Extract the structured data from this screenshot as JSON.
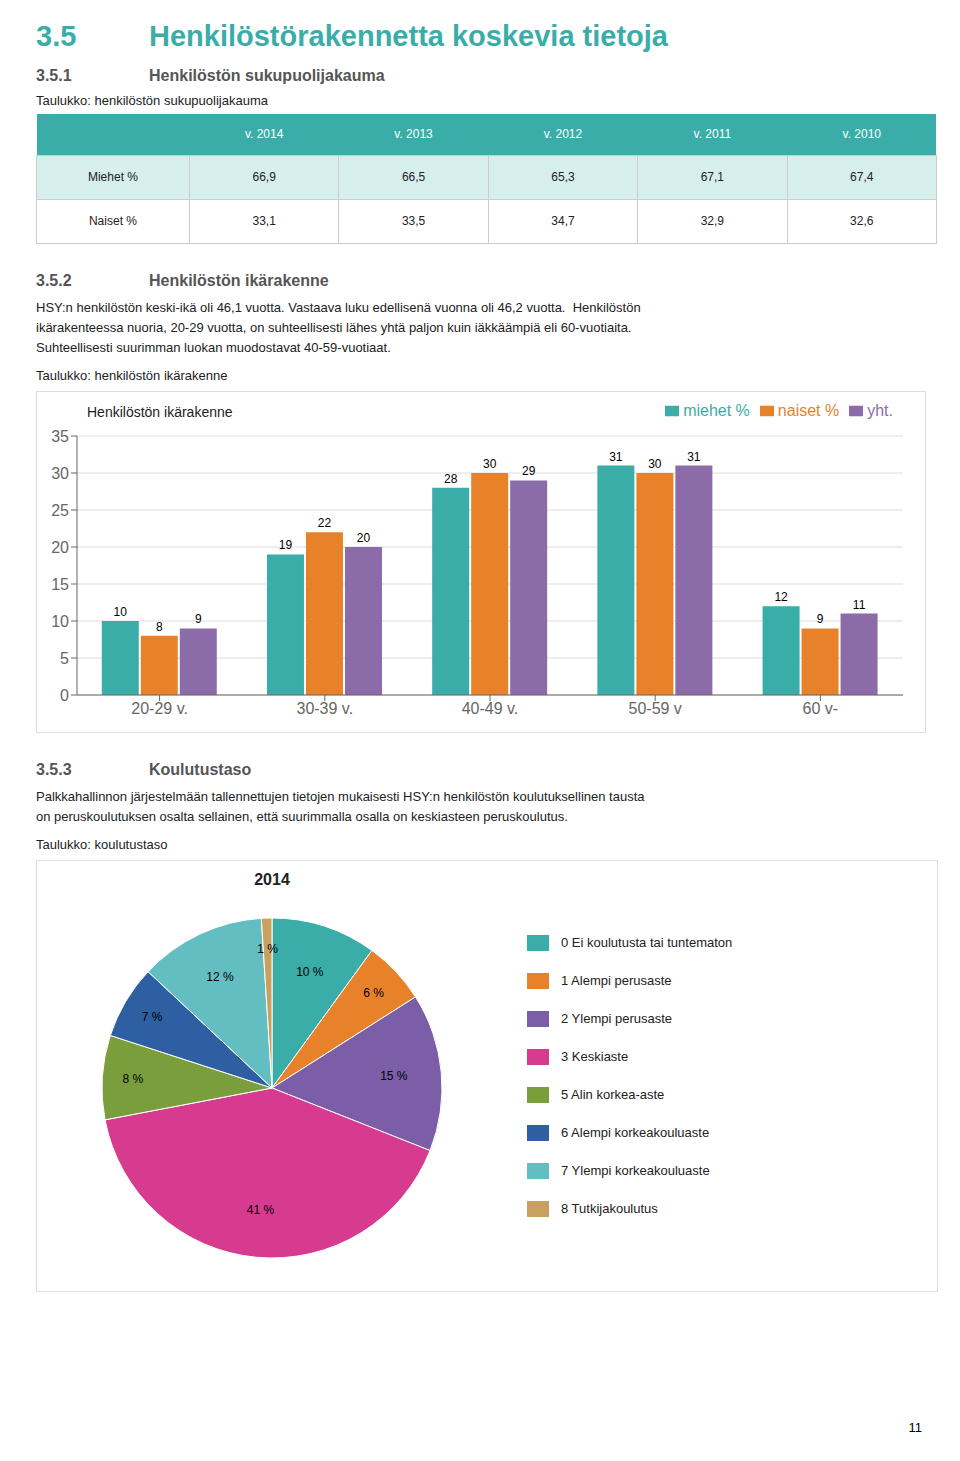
{
  "title_num": "3.5",
  "title_text": "Henkilöstörakennetta koskevia tietoja",
  "title_color": "#3AADA8",
  "sections": [
    {
      "num": "3.5.1",
      "text": "Henkilöstön sukupuolijakauma",
      "label": "Taulukko: henkilöstön sukupuolijakauma"
    },
    {
      "num": "3.5.2",
      "text": "Henkilöstön ikärakenne",
      "body": [
        "HSY:n henkilöstön keski-ikä oli 46,1 vuotta. Vastaava luku edellisenä vuonna oli 46,2 vuotta.  Henkilöstön",
        "ikärakenteessa nuoria, 20-29 vuotta, on suhteellisesti lähes yhtä paljon kuin iäkkäämpiä eli 60-vuotiaita.",
        "Suhteellisesti suurimman luokan muodostavat 40-59-vuotiaat."
      ],
      "label": "Taulukko: henkilöstön ikärakenne"
    },
    {
      "num": "3.5.3",
      "text": "Koulutustaso",
      "body": [
        "Palkkahallinnon järjestelmään tallennettujen tietojen mukaisesti HSY:n henkilöstön koulutuksellinen tausta",
        "on peruskoulutuksen osalta sellainen, että suurimmalla osalla on keskiasteen peruskoulutus."
      ],
      "label": "Taulukko: koulutustaso"
    }
  ],
  "table": {
    "headers": [
      null,
      "v. 2014",
      "v. 2013",
      "v. 2012",
      "v. 2011",
      "v. 2010"
    ],
    "rows": [
      [
        "Miehet %",
        "66,9",
        "66,5",
        "65,3",
        "67,1",
        "67,4"
      ],
      [
        "Naiset %",
        "33,1",
        "33,5",
        "34,7",
        "32,9",
        "32,6"
      ]
    ],
    "header_color": "#3AADA8",
    "row_colors": [
      "#D6EEEC",
      "#FFFFFF"
    ]
  },
  "chart_data": [
    {
      "type": "bar",
      "title": "Henkilöstön ikärakenne",
      "categories": [
        "20-29 v.",
        "30-39 v.",
        "40-49 v.",
        "50-59 v",
        "60 v-"
      ],
      "series": [
        {
          "name": "miehet %",
          "color": "#3AADA8",
          "values": [
            10,
            19,
            28,
            31,
            12
          ]
        },
        {
          "name": "naiset %",
          "color": "#E8822A",
          "values": [
            8,
            22,
            30,
            30,
            9
          ]
        },
        {
          "name": "yht.",
          "color": "#8B6BA8",
          "values": [
            9,
            20,
            29,
            31,
            11
          ]
        }
      ],
      "ylim": [
        0,
        35
      ],
      "yticks": [
        0,
        5,
        10,
        15,
        20,
        25,
        30,
        35
      ],
      "grid": true,
      "legend": "upper right",
      "data_labels": true
    },
    {
      "type": "pie",
      "title": "2014",
      "categories": [
        "0 Ei koulutusta tai tuntematon",
        "1 Alempi perusaste",
        "2 Ylempi perusaste",
        "3 Keskiaste",
        "5 Alin korkea-aste",
        "6 Alempi korkeakouluaste",
        "7 Ylempi korkeakouluaste",
        "8 Tutkijakoulutus"
      ],
      "values": [
        10,
        6,
        15,
        41,
        8,
        7,
        12,
        1
      ],
      "value_labels": [
        "10 %",
        "6 %",
        "15 %",
        "41 %",
        "8 %",
        "7 %",
        "12 %",
        "1 %"
      ],
      "colors": [
        "#3AADA8",
        "#E8822A",
        "#7B5EA7",
        "#D63B8F",
        "#7B9E3C",
        "#2E5FA3",
        "#62BEC1",
        "#C8A060"
      ],
      "legend": "right",
      "data_labels": true
    }
  ],
  "page_number": "11"
}
